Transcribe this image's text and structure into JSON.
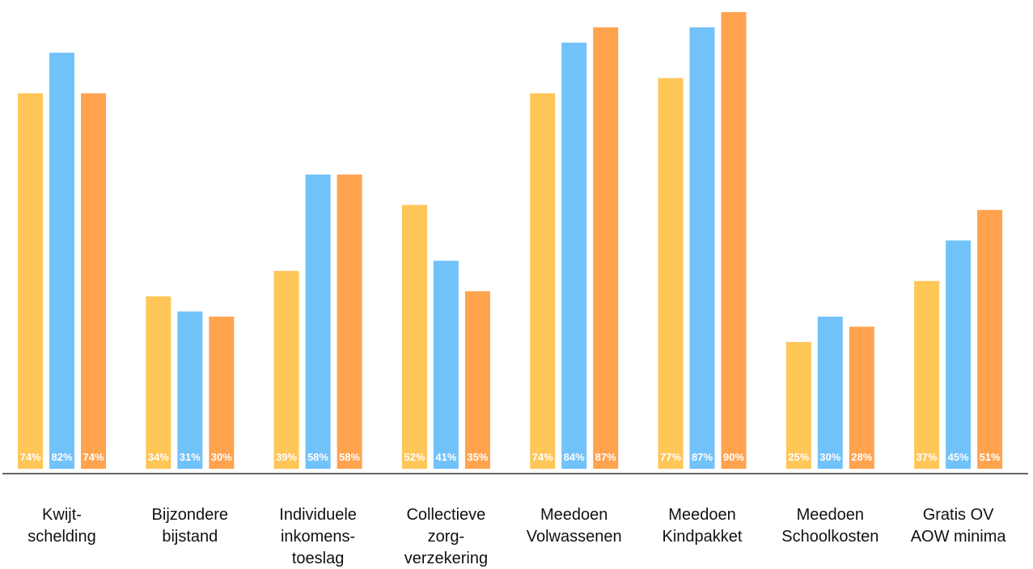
{
  "chart_data": {
    "type": "bar",
    "categories": [
      [
        "Kwijt-",
        "schelding"
      ],
      [
        "Bijzondere",
        "bijstand"
      ],
      [
        "Individuele",
        "inkomens-",
        "toeslag"
      ],
      [
        "Collectieve",
        "zorg-",
        "verzekering"
      ],
      [
        "Meedoen",
        "Volwassenen"
      ],
      [
        "Meedoen",
        "Kindpakket"
      ],
      [
        "Meedoen",
        "Schoolkosten"
      ],
      [
        "Gratis OV",
        "AOW minima"
      ]
    ],
    "series": [
      {
        "color": "#FFC658",
        "values": [
          74,
          34,
          39,
          52,
          74,
          77,
          25,
          37
        ],
        "labels": [
          "74%",
          "34%",
          "39%",
          "52%",
          "74%",
          "77%",
          "25%",
          "37%"
        ]
      },
      {
        "color": "#72C2FA",
        "values": [
          82,
          31,
          58,
          41,
          84,
          87,
          30,
          45
        ],
        "labels": [
          "82%",
          "31%",
          "58%",
          "41%",
          "84%",
          "87%",
          "30%",
          "45%"
        ]
      },
      {
        "color": "#FFA34F",
        "values": [
          74,
          30,
          58,
          35,
          87,
          90,
          28,
          51
        ],
        "labels": [
          "74%",
          "30%",
          "58%",
          "35%",
          "87%",
          "90%",
          "28%",
          "51%"
        ]
      }
    ],
    "ylim": [
      0,
      90
    ],
    "grid": false,
    "legend": "none"
  }
}
